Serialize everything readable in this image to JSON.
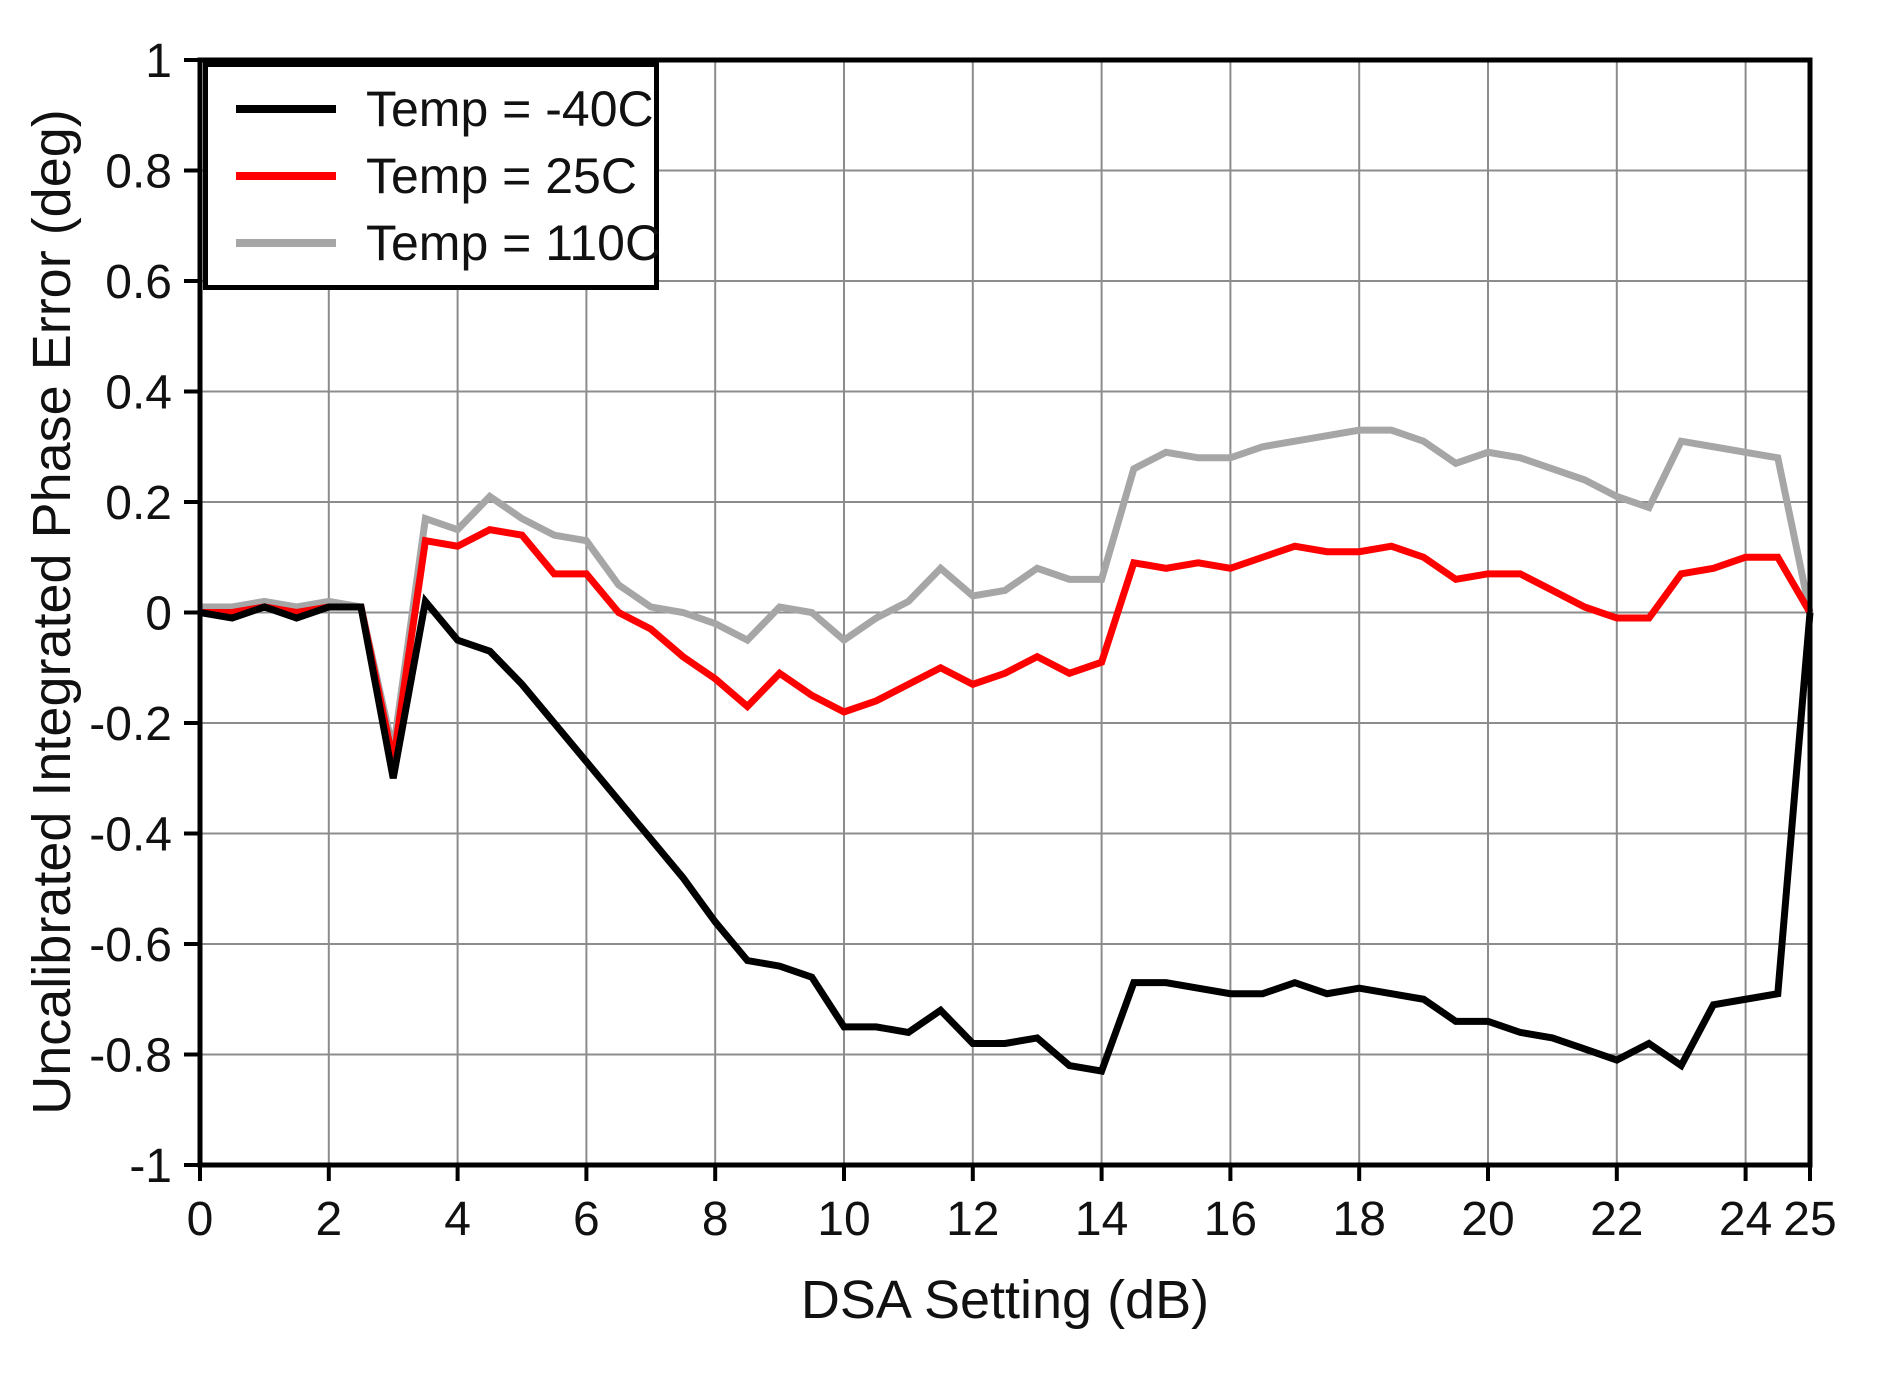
{
  "chart_data": {
    "type": "line",
    "title": "",
    "xlabel": "DSA Setting (dB)",
    "ylabel": "Uncalibrated Integrated Phase Error (deg)",
    "xlim": [
      0,
      25
    ],
    "ylim": [
      -1,
      1
    ],
    "grid": true,
    "legend_position": "top-left",
    "axis_color": "#000000",
    "gridline_color": "#8c8c8c",
    "text_color": "#111111",
    "x_ticks": {
      "values": [
        0,
        2,
        4,
        6,
        8,
        10,
        12,
        14,
        16,
        18,
        20,
        22,
        24,
        25
      ],
      "labels": [
        "0",
        "2",
        "4",
        "6",
        "8",
        "10",
        "12",
        "14",
        "16",
        "18",
        "20",
        "22",
        "24",
        "25"
      ]
    },
    "y_ticks": {
      "values": [
        1,
        0.8,
        0.6,
        0.4,
        0.2,
        0,
        -0.2,
        -0.4,
        -0.6,
        -0.8,
        -1
      ],
      "labels": [
        "1",
        "0.8",
        "0.6",
        "0.4",
        "0.2",
        "0",
        "-0.2",
        "-0.4",
        "-0.6",
        "-0.8",
        "-1"
      ]
    },
    "x_gridlines": [
      2,
      4,
      6,
      8,
      10,
      12,
      14,
      16,
      18,
      20,
      22,
      24
    ],
    "y_gridlines": [
      -0.8,
      -0.6,
      -0.4,
      -0.2,
      0,
      0.2,
      0.4,
      0.6,
      0.8
    ],
    "x": [
      0,
      0.5,
      1,
      1.5,
      2,
      2.5,
      3,
      3.5,
      4,
      4.5,
      5,
      5.5,
      6,
      6.5,
      7,
      7.5,
      8,
      8.5,
      9,
      9.5,
      10,
      10.5,
      11,
      11.5,
      12,
      12.5,
      13,
      13.5,
      14,
      14.5,
      15,
      15.5,
      16,
      16.5,
      17,
      17.5,
      18,
      18.5,
      19,
      19.5,
      20,
      20.5,
      21,
      21.5,
      22,
      22.5,
      23,
      23.5,
      24,
      24.5,
      25
    ],
    "series": [
      {
        "name": "Temp = -40C",
        "color": "#000000",
        "values": [
          0.0,
          -0.01,
          0.01,
          -0.01,
          0.01,
          0.01,
          -0.3,
          0.02,
          -0.05,
          -0.07,
          -0.13,
          -0.2,
          -0.27,
          -0.34,
          -0.41,
          -0.48,
          -0.56,
          -0.63,
          -0.64,
          -0.66,
          -0.75,
          -0.75,
          -0.76,
          -0.72,
          -0.78,
          -0.78,
          -0.77,
          -0.82,
          -0.83,
          -0.67,
          -0.67,
          -0.68,
          -0.69,
          -0.69,
          -0.67,
          -0.69,
          -0.68,
          -0.69,
          -0.7,
          -0.74,
          -0.74,
          -0.76,
          -0.77,
          -0.79,
          -0.81,
          -0.78,
          -0.82,
          -0.71,
          -0.7,
          -0.69,
          0.0
        ]
      },
      {
        "name": "Temp = 25C",
        "color": "#ff0000",
        "values": [
          0.0,
          0.0,
          0.01,
          0.0,
          0.01,
          0.01,
          -0.27,
          0.13,
          0.12,
          0.15,
          0.14,
          0.07,
          0.07,
          0.0,
          -0.03,
          -0.08,
          -0.12,
          -0.17,
          -0.11,
          -0.15,
          -0.18,
          -0.16,
          -0.13,
          -0.1,
          -0.13,
          -0.11,
          -0.08,
          -0.11,
          -0.09,
          0.09,
          0.08,
          0.09,
          0.08,
          0.1,
          0.12,
          0.11,
          0.11,
          0.12,
          0.1,
          0.06,
          0.07,
          0.07,
          0.04,
          0.01,
          -0.01,
          -0.01,
          0.07,
          0.08,
          0.1,
          0.1,
          0.0
        ]
      },
      {
        "name": "Temp = 110C",
        "color": "#a6a6a6",
        "values": [
          0.01,
          0.01,
          0.02,
          0.01,
          0.02,
          0.01,
          -0.25,
          0.17,
          0.15,
          0.21,
          0.17,
          0.14,
          0.13,
          0.05,
          0.01,
          0.0,
          -0.02,
          -0.05,
          0.01,
          0.0,
          -0.05,
          -0.01,
          0.02,
          0.08,
          0.03,
          0.04,
          0.08,
          0.06,
          0.06,
          0.26,
          0.29,
          0.28,
          0.28,
          0.3,
          0.31,
          0.32,
          0.33,
          0.33,
          0.31,
          0.27,
          0.29,
          0.28,
          0.26,
          0.24,
          0.21,
          0.19,
          0.31,
          0.3,
          0.29,
          0.28,
          0.0
        ]
      }
    ]
  }
}
